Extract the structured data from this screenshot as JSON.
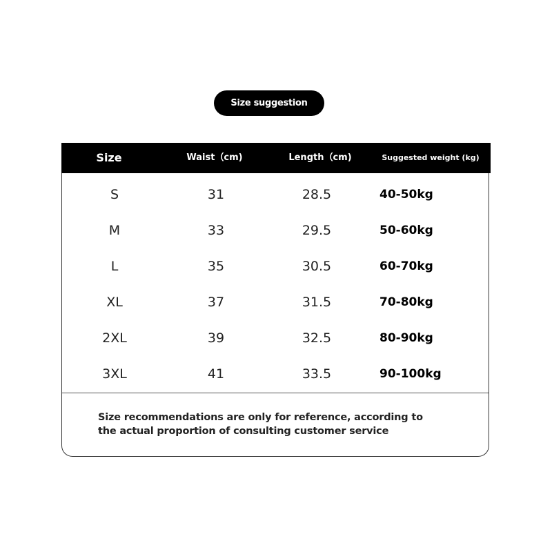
{
  "title": "Size suggestion",
  "headers": [
    "Size",
    "Waist（cm)",
    "Length（cm)",
    "Suggested weight (kg)"
  ],
  "rows": [
    [
      "S",
      "31",
      "28.5",
      "40-50kg"
    ],
    [
      "M",
      "33",
      "29.5",
      "50-60kg"
    ],
    [
      "L",
      "35",
      "30.5",
      "60-70kg"
    ],
    [
      "XL",
      "37",
      "31.5",
      "70-80kg"
    ],
    [
      "2XL",
      "39",
      "32.5",
      "80-90kg"
    ],
    [
      "3XL",
      "41",
      "33.5",
      "90-100kg"
    ]
  ],
  "note_line1": "Size recommendations are only for reference, according to",
  "note_line2": "the actual proportion of consulting customer service"
}
